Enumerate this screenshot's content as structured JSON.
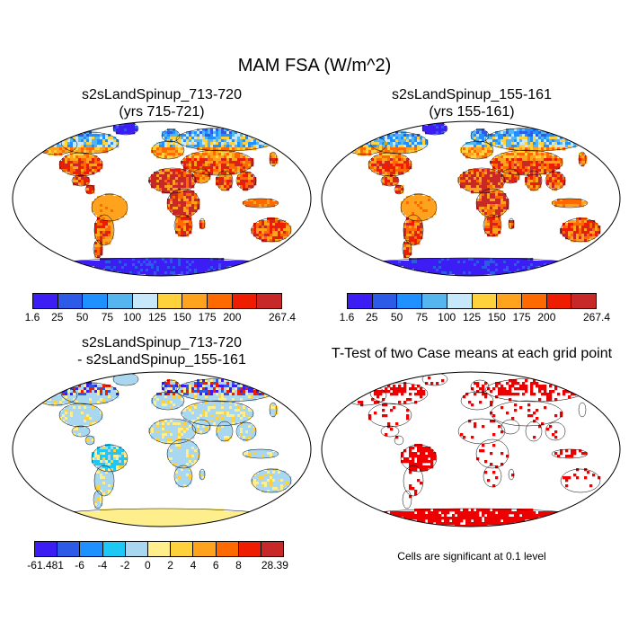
{
  "title": "MAM FSA (W/m^2)",
  "panels": [
    {
      "id": "case1",
      "title_line1": "s2sLandSpinup_713-720",
      "title_line2": "(yrs 715-721)",
      "colorbar": {
        "colors": [
          "#3c1ef5",
          "#2d5ae6",
          "#1e90ff",
          "#55b5ee",
          "#c7e8fa",
          "#ffd23c",
          "#ffa21e",
          "#ff6a00",
          "#ee1c00",
          "#c82828"
        ],
        "labels": [
          "1.6",
          "25",
          "50",
          "75",
          "100",
          "125",
          "150",
          "175",
          "200",
          "267.4"
        ]
      }
    },
    {
      "id": "case2",
      "title_line1": "s2sLandSpinup_155-161",
      "title_line2": "(yrs 155-161)",
      "colorbar": {
        "colors": [
          "#3c1ef5",
          "#2d5ae6",
          "#1e90ff",
          "#55b5ee",
          "#c7e8fa",
          "#ffd23c",
          "#ffa21e",
          "#ff6a00",
          "#ee1c00",
          "#c82828"
        ],
        "labels": [
          "1.6",
          "25",
          "50",
          "75",
          "100",
          "125",
          "150",
          "175",
          "200",
          "267.4"
        ]
      }
    },
    {
      "id": "diff",
      "title_line1": "s2sLandSpinup_713-720",
      "title_line2": "- s2sLandSpinup_155-161",
      "colorbar": {
        "colors": [
          "#3c1ef5",
          "#2d5ae6",
          "#1e90ff",
          "#1ec8f5",
          "#aad7f0",
          "#ffef8c",
          "#ffd23c",
          "#ffa21e",
          "#ff6a00",
          "#ee1c00",
          "#c82828"
        ],
        "labels": [
          "-61.481",
          "-6",
          "-4",
          "-2",
          "0",
          "2",
          "4",
          "6",
          "8",
          "28.39"
        ]
      }
    },
    {
      "id": "ttest",
      "title_line1": "T-Test of two Case means at each grid point",
      "note": "Cells are significant at 0.1 level"
    }
  ]
}
